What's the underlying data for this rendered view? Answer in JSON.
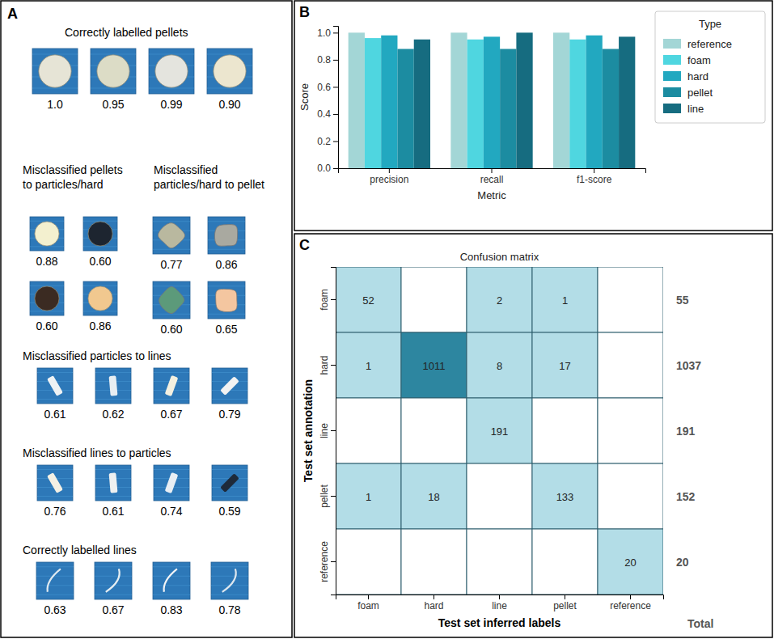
{
  "panel_a": {
    "panel_label": "A",
    "sections": [
      {
        "title": "Correctly labelled pellets",
        "scores": [
          "1.0",
          "0.95",
          "0.99",
          "0.90"
        ]
      },
      {
        "title": "Misclassified pellets to particles/hard",
        "scores": [
          "0.88",
          "0.60",
          "0.60",
          "0.86"
        ]
      },
      {
        "title": "Misclassified particles/hard to pellet",
        "scores": [
          "0.77",
          "0.86",
          "0.60",
          "0.65"
        ]
      },
      {
        "title": "Misclassified particles to lines",
        "scores": [
          "0.61",
          "0.62",
          "0.67",
          "0.79"
        ]
      },
      {
        "title": "Misclassified lines to particles",
        "scores": [
          "0.76",
          "0.61",
          "0.74",
          "0.59"
        ]
      },
      {
        "title": "Correctly labelled lines",
        "scores": [
          "0.63",
          "0.67",
          "0.83",
          "0.78"
        ]
      }
    ]
  },
  "chart_data": [
    {
      "type": "bar",
      "panel_label": "B",
      "x_label": "Metric",
      "y_label": "Score",
      "categories": [
        "precision",
        "recall",
        "f1-score"
      ],
      "series": [
        {
          "name": "reference",
          "color": "#a3d6d6",
          "values": [
            1.0,
            1.0,
            1.0
          ]
        },
        {
          "name": "foam",
          "color": "#4fd6e0",
          "values": [
            0.96,
            0.95,
            0.95
          ]
        },
        {
          "name": "hard",
          "color": "#22a8c0",
          "values": [
            0.98,
            0.97,
            0.98
          ]
        },
        {
          "name": "pellet",
          "color": "#1c8ca1",
          "values": [
            0.88,
            0.88,
            0.88
          ]
        },
        {
          "name": "line",
          "color": "#166c80",
          "values": [
            0.95,
            1.0,
            0.97
          ]
        }
      ],
      "legend_title": "Type",
      "legend": "right",
      "grid": false,
      "ylim": [
        0,
        1.05
      ],
      "yticks": [
        {
          "value": 0,
          "label": "0.0"
        },
        {
          "value": 0.2,
          "label": "0.2"
        },
        {
          "value": 0.4,
          "label": "0.4"
        },
        {
          "value": 0.6,
          "label": "0.6"
        },
        {
          "value": 0.8,
          "label": "0.8"
        },
        {
          "value": 1,
          "label": "1.0"
        }
      ]
    },
    {
      "type": "heatmap",
      "panel_label": "C",
      "title": "Confusion matrix",
      "x_label": "Test set inferred labels",
      "y_label": "Test set annotation",
      "x_categories": [
        "foam",
        "hard",
        "line",
        "pellet",
        "reference"
      ],
      "y_categories": [
        "foam",
        "hard",
        "line",
        "pellet",
        "reference"
      ],
      "cells": [
        [
          52,
          null,
          2,
          1,
          null
        ],
        [
          1,
          1011,
          8,
          17,
          null
        ],
        [
          null,
          null,
          191,
          null,
          null
        ],
        [
          1,
          18,
          null,
          133,
          null
        ],
        [
          null,
          null,
          null,
          null,
          20
        ]
      ],
      "row_totals": [
        55,
        1037,
        191,
        152,
        20
      ],
      "totals_label": "Total"
    }
  ]
}
